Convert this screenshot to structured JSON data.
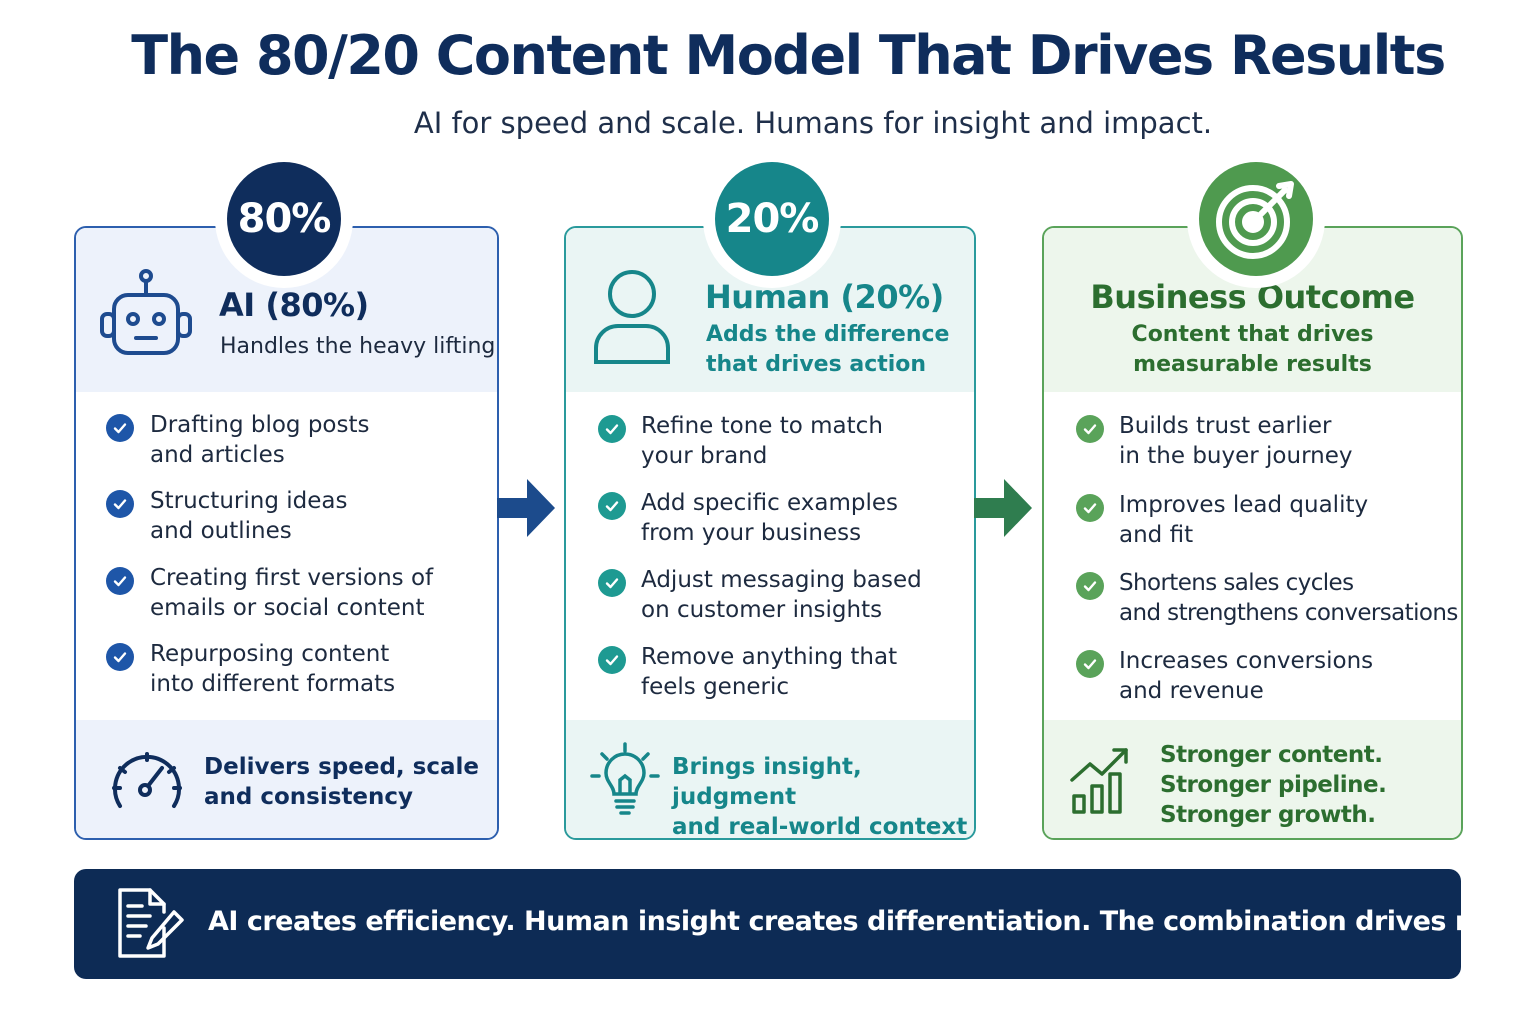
{
  "title": "The 80/20 Content Model That Drives Results",
  "subtitle": "AI for speed and scale. Humans for insight and impact.",
  "colors": {
    "navy": "#0f2d5c",
    "blue": "#1e56a8",
    "teal": "#16868a",
    "green": "#3f8a3f",
    "dark_green": "#2c6e2f"
  },
  "ai": {
    "badge": "80%",
    "icon": "robot-icon",
    "title": "AI (80%)",
    "subtitle": "Handles the heavy lifting",
    "items": [
      {
        "line1": "Drafting blog posts",
        "line2": "and articles"
      },
      {
        "line1": "Structuring ideas",
        "line2": "and outlines"
      },
      {
        "line1": "Creating first versions of",
        "line2": "emails or social content"
      },
      {
        "line1": "Repurposing content",
        "line2": "into different formats"
      }
    ],
    "footer_icon": "speedometer-icon",
    "footer_line1": "Delivers speed, scale",
    "footer_line2": "and consistency"
  },
  "human": {
    "badge": "20%",
    "icon": "person-icon",
    "title": "Human (20%)",
    "subtitle_line1": "Adds the difference",
    "subtitle_line2": "that drives action",
    "items": [
      {
        "line1": "Refine tone to match",
        "line2": "your brand"
      },
      {
        "line1": "Add specific examples",
        "line2": "from your business"
      },
      {
        "line1": "Adjust messaging based",
        "line2": "on customer insights"
      },
      {
        "line1": "Remove anything that",
        "line2": "feels generic"
      }
    ],
    "footer_icon": "lightbulb-icon",
    "footer_line1": "Brings insight, judgment",
    "footer_line2": "and real-world context"
  },
  "outcome": {
    "icon": "target-icon",
    "title": "Business Outcome",
    "subtitle_line1": "Content that drives",
    "subtitle_line2": "measurable results",
    "items": [
      {
        "line1": "Builds trust earlier",
        "line2": "in the buyer journey"
      },
      {
        "line1": "Improves lead quality",
        "line2": "and fit"
      },
      {
        "line1": "Shortens sales cycles",
        "line2": "and strengthens conversations"
      },
      {
        "line1": "Increases conversions",
        "line2": "and revenue"
      }
    ],
    "footer_icon": "growth-chart-icon",
    "footer_line1": "Stronger content.",
    "footer_line2": "Stronger pipeline.",
    "footer_line3": "Stronger growth."
  },
  "bottom": {
    "icon": "document-edit-icon",
    "text": "AI creates efficiency. Human insight creates differentiation. The combination drives results."
  }
}
